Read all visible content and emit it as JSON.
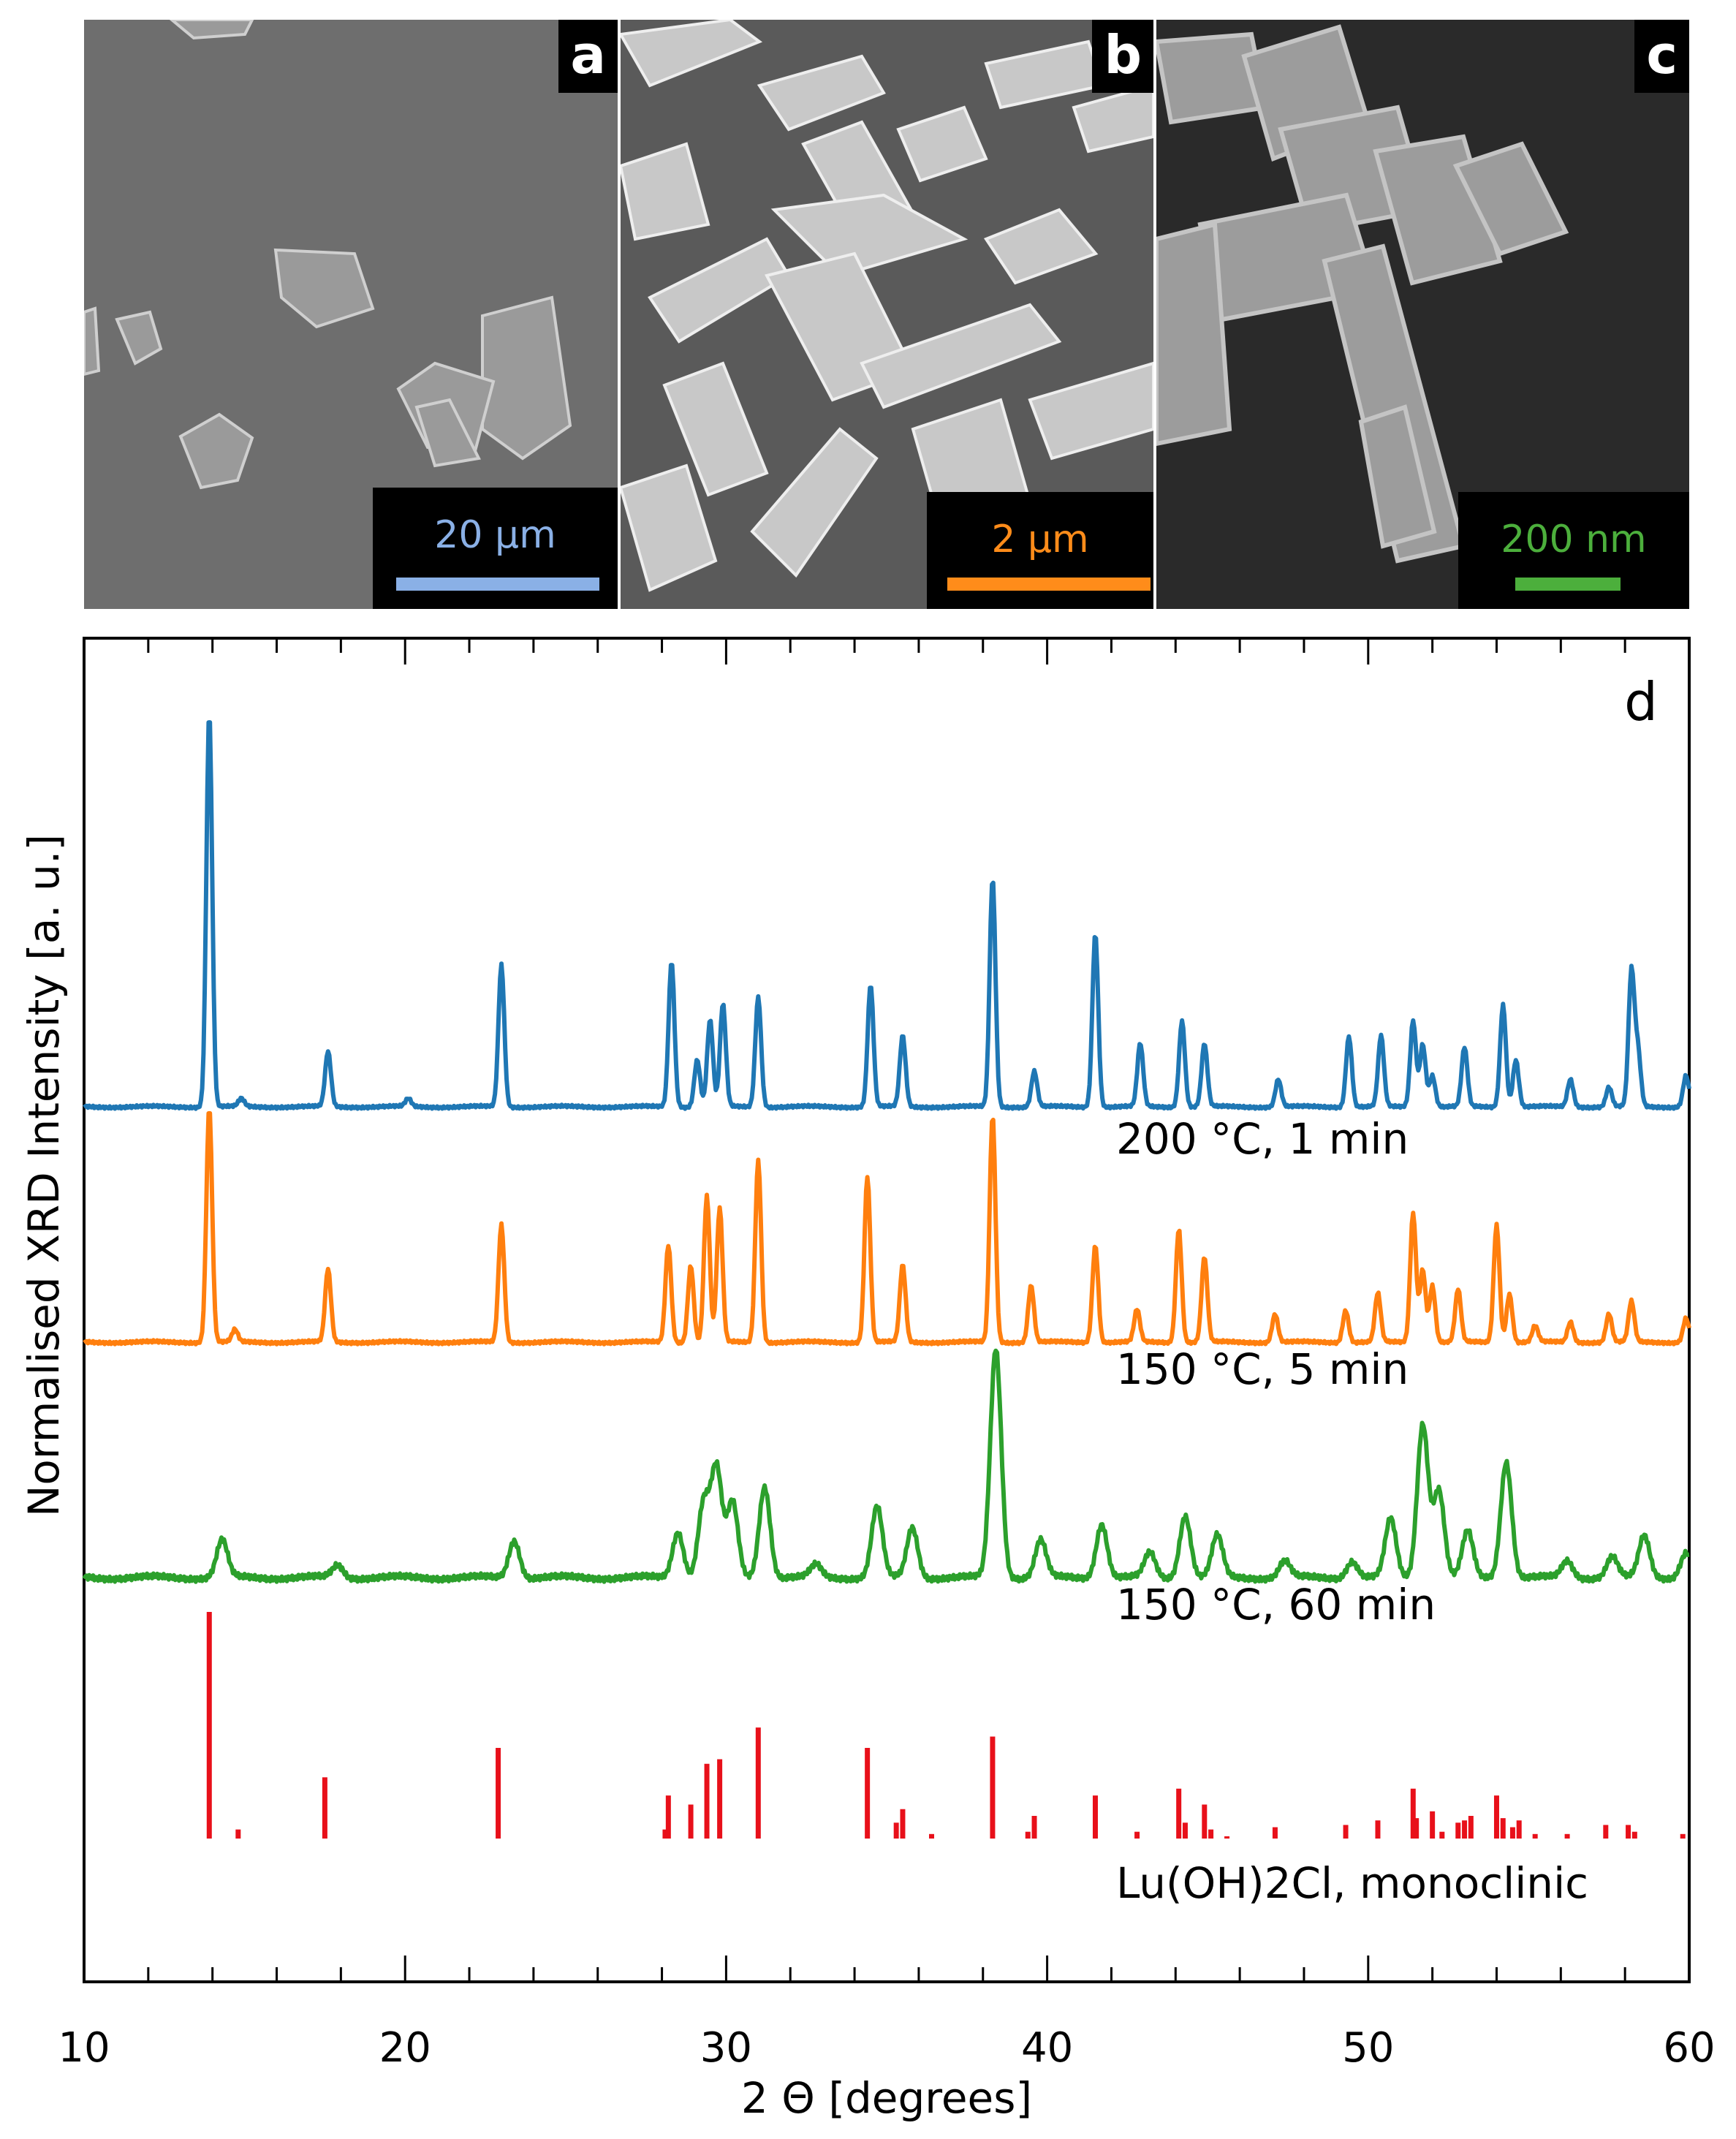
{
  "panels": [
    {
      "letter": "a",
      "scale_label": "20 µm",
      "scale_color": "#8ab0e6"
    },
    {
      "letter": "b",
      "scale_label": "2 µm",
      "scale_color": "#ff8c1a"
    },
    {
      "letter": "c",
      "scale_label": "200 nm",
      "scale_color": "#4caf3c"
    }
  ],
  "chart_data": {
    "type": "line",
    "panel_letter": "d",
    "xlabel": "2 Θ [degrees]",
    "ylabel": "Normalised XRD Intensity [a. u.]",
    "xlim": [
      10,
      60
    ],
    "xticks": [
      10,
      20,
      30,
      40,
      50,
      60
    ],
    "yticks": "none",
    "series": [
      {
        "name": "200 °C, 1 min",
        "color": "#1f77b4",
        "peaks": [
          [
            13.9,
            1.0
          ],
          [
            14.9,
            0.02
          ],
          [
            17.6,
            0.14
          ],
          [
            20.1,
            0.02
          ],
          [
            23.0,
            0.36
          ],
          [
            28.3,
            0.37
          ],
          [
            29.1,
            0.12
          ],
          [
            29.5,
            0.22
          ],
          [
            29.9,
            0.26
          ],
          [
            31.0,
            0.28
          ],
          [
            34.5,
            0.31
          ],
          [
            35.5,
            0.18
          ],
          [
            38.3,
            0.58
          ],
          [
            39.6,
            0.09
          ],
          [
            41.5,
            0.44
          ],
          [
            42.9,
            0.16
          ],
          [
            44.2,
            0.22
          ],
          [
            44.9,
            0.16
          ],
          [
            47.2,
            0.07
          ],
          [
            49.4,
            0.18
          ],
          [
            50.4,
            0.18
          ],
          [
            51.4,
            0.22
          ],
          [
            51.7,
            0.16
          ],
          [
            52.0,
            0.08
          ],
          [
            53.0,
            0.15
          ],
          [
            54.2,
            0.26
          ],
          [
            54.6,
            0.12
          ],
          [
            56.3,
            0.07
          ],
          [
            57.5,
            0.05
          ],
          [
            58.2,
            0.34
          ],
          [
            58.4,
            0.14
          ],
          [
            59.9,
            0.08
          ]
        ]
      },
      {
        "name": "150 °C, 5 min",
        "color": "#ff7f0e",
        "peaks": [
          [
            13.9,
            0.58
          ],
          [
            14.7,
            0.03
          ],
          [
            17.6,
            0.18
          ],
          [
            23.0,
            0.29
          ],
          [
            28.2,
            0.24
          ],
          [
            28.9,
            0.19
          ],
          [
            29.4,
            0.36
          ],
          [
            29.8,
            0.33
          ],
          [
            31.0,
            0.45
          ],
          [
            34.4,
            0.41
          ],
          [
            35.5,
            0.19
          ],
          [
            38.3,
            0.56
          ],
          [
            39.5,
            0.14
          ],
          [
            41.5,
            0.24
          ],
          [
            42.8,
            0.08
          ],
          [
            44.1,
            0.28
          ],
          [
            44.9,
            0.21
          ],
          [
            47.1,
            0.07
          ],
          [
            49.3,
            0.08
          ],
          [
            50.3,
            0.12
          ],
          [
            51.4,
            0.32
          ],
          [
            51.7,
            0.18
          ],
          [
            52.0,
            0.14
          ],
          [
            52.8,
            0.13
          ],
          [
            54.0,
            0.29
          ],
          [
            54.4,
            0.12
          ],
          [
            55.2,
            0.04
          ],
          [
            56.3,
            0.05
          ],
          [
            57.5,
            0.07
          ],
          [
            58.2,
            0.1
          ],
          [
            59.9,
            0.06
          ]
        ]
      },
      {
        "name": "150 °C, 60 min",
        "color": "#2ca02c",
        "peaks": [
          [
            14.3,
            0.09
          ],
          [
            17.9,
            0.03
          ],
          [
            23.4,
            0.09
          ],
          [
            28.5,
            0.11
          ],
          [
            29.3,
            0.18
          ],
          [
            29.7,
            0.26
          ],
          [
            30.2,
            0.18
          ],
          [
            31.2,
            0.22
          ],
          [
            32.8,
            0.03
          ],
          [
            34.7,
            0.17
          ],
          [
            35.8,
            0.12
          ],
          [
            38.4,
            0.55
          ],
          [
            39.8,
            0.09
          ],
          [
            41.7,
            0.13
          ],
          [
            43.2,
            0.06
          ],
          [
            44.3,
            0.15
          ],
          [
            45.3,
            0.1
          ],
          [
            47.4,
            0.04
          ],
          [
            49.5,
            0.04
          ],
          [
            50.7,
            0.14
          ],
          [
            51.7,
            0.37
          ],
          [
            52.2,
            0.21
          ],
          [
            53.1,
            0.11
          ],
          [
            54.3,
            0.28
          ],
          [
            56.2,
            0.04
          ],
          [
            57.6,
            0.05
          ],
          [
            58.6,
            0.1
          ],
          [
            59.9,
            0.06
          ]
        ]
      },
      {
        "name": "Lu(OH)2Cl, monoclinic",
        "color": "#e8101a",
        "type": "stick",
        "sticks": [
          [
            13.9,
            1.0
          ],
          [
            14.8,
            0.04
          ],
          [
            17.5,
            0.27
          ],
          [
            22.9,
            0.4
          ],
          [
            28.1,
            0.04
          ],
          [
            28.2,
            0.19
          ],
          [
            28.9,
            0.15
          ],
          [
            29.4,
            0.33
          ],
          [
            29.8,
            0.35
          ],
          [
            31.0,
            0.49
          ],
          [
            34.4,
            0.4
          ],
          [
            35.3,
            0.07
          ],
          [
            35.5,
            0.13
          ],
          [
            36.4,
            0.02
          ],
          [
            38.3,
            0.45
          ],
          [
            39.4,
            0.03
          ],
          [
            39.6,
            0.1
          ],
          [
            41.5,
            0.19
          ],
          [
            42.8,
            0.03
          ],
          [
            44.1,
            0.22
          ],
          [
            44.3,
            0.07
          ],
          [
            44.9,
            0.15
          ],
          [
            45.1,
            0.04
          ],
          [
            45.6,
            0.01
          ],
          [
            47.1,
            0.05
          ],
          [
            49.3,
            0.06
          ],
          [
            50.3,
            0.08
          ],
          [
            51.4,
            0.22
          ],
          [
            51.5,
            0.09
          ],
          [
            52.0,
            0.12
          ],
          [
            52.3,
            0.03
          ],
          [
            52.8,
            0.07
          ],
          [
            53.0,
            0.08
          ],
          [
            53.2,
            0.1
          ],
          [
            54.0,
            0.19
          ],
          [
            54.2,
            0.09
          ],
          [
            54.5,
            0.05
          ],
          [
            54.7,
            0.08
          ],
          [
            55.2,
            0.02
          ],
          [
            56.2,
            0.02
          ],
          [
            57.4,
            0.06
          ],
          [
            58.1,
            0.06
          ],
          [
            58.3,
            0.03
          ],
          [
            59.8,
            0.02
          ]
        ]
      }
    ]
  }
}
